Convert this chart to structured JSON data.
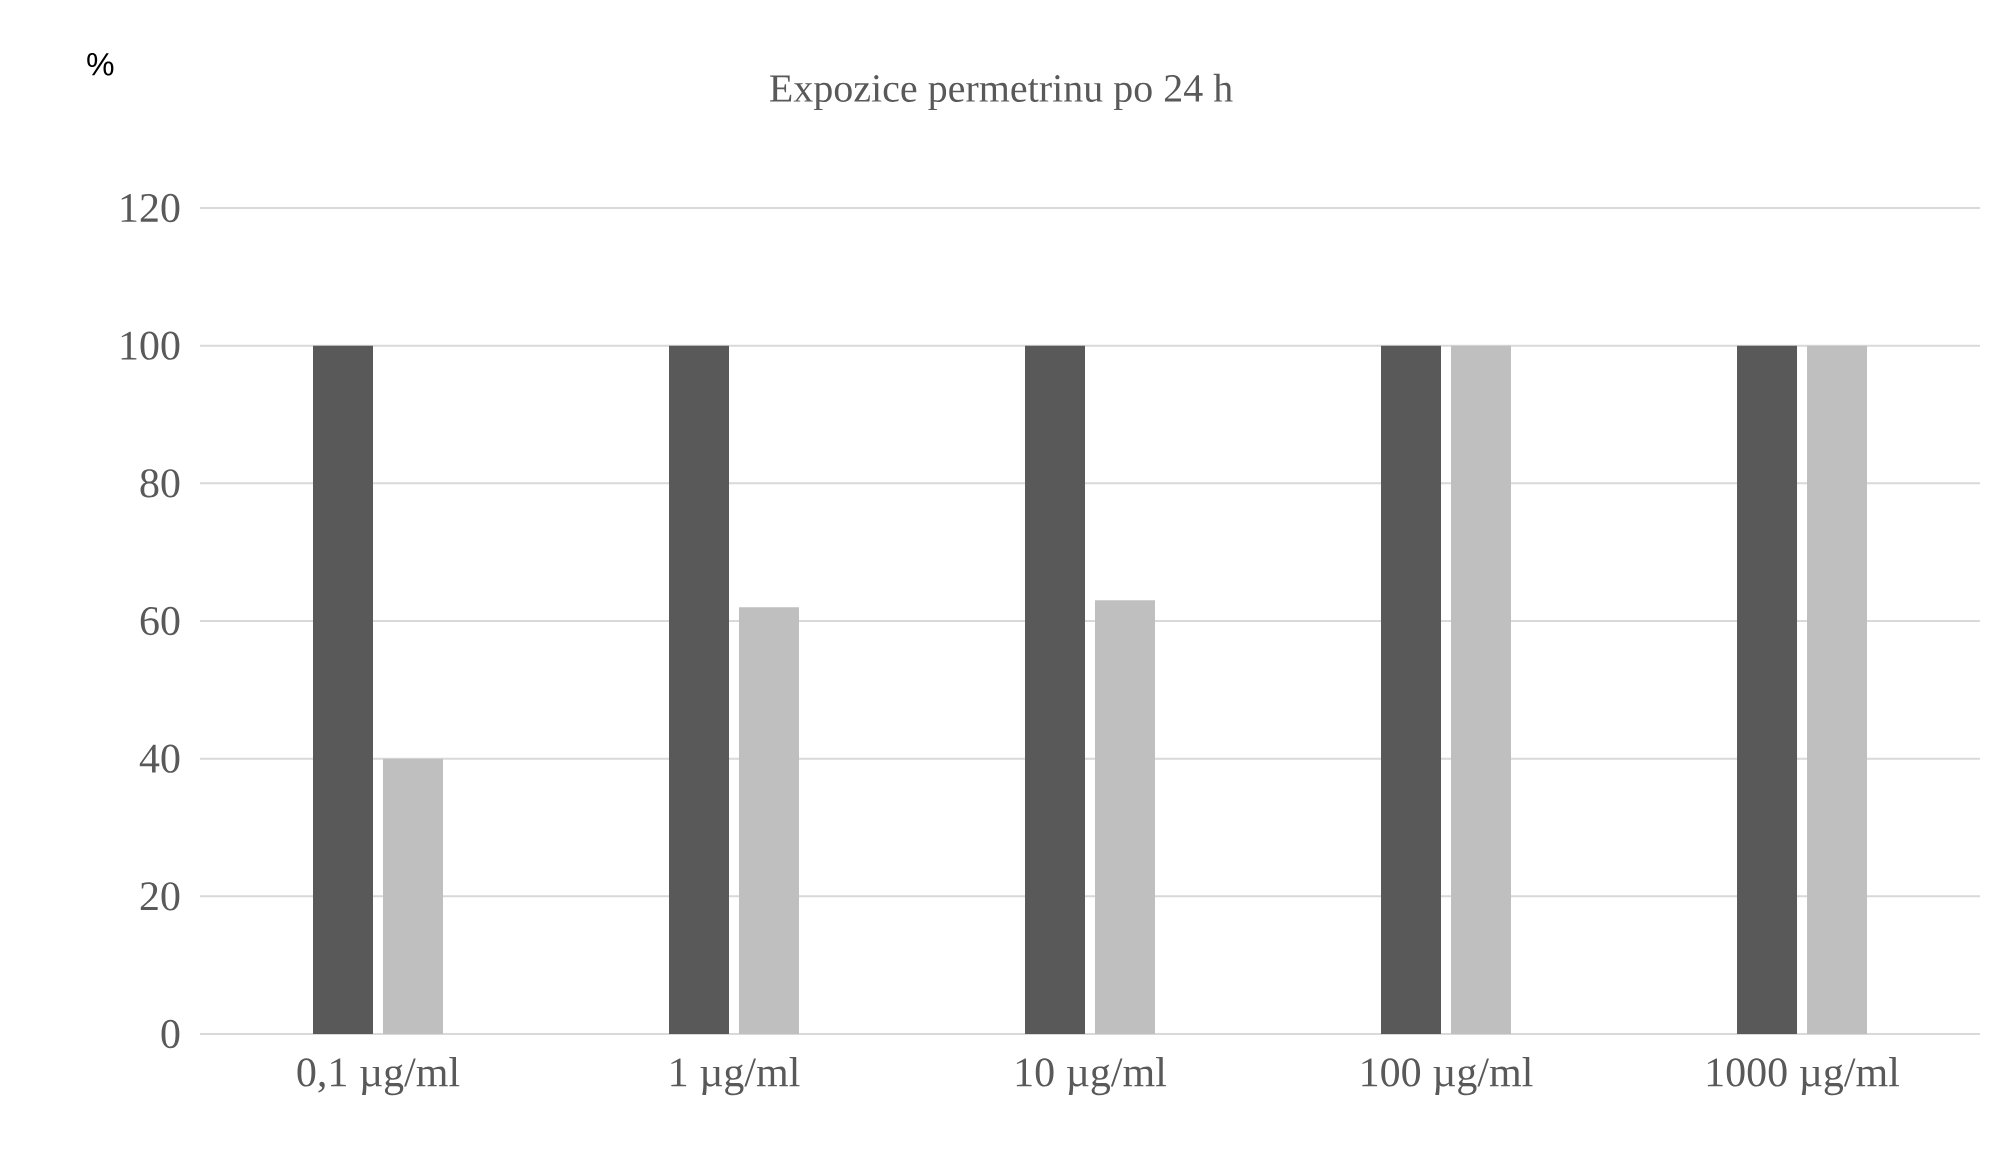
{
  "chart_data": {
    "type": "bar",
    "title": "Expozice permetrinu po 24 h",
    "ylabel": "%",
    "categories": [
      "0,1 µg/ml",
      "1 µg/ml",
      "10 µg/ml",
      "100 µg/ml",
      "1000 µg/ml"
    ],
    "series": [
      {
        "color": "#595959",
        "values": [
          100,
          100,
          100,
          100,
          100
        ]
      },
      {
        "color": "#bfbfbf",
        "values": [
          40,
          62,
          63,
          100,
          100
        ]
      }
    ],
    "ylim": [
      0,
      120
    ],
    "yticks": [
      0,
      20,
      40,
      60,
      80,
      100,
      120
    ],
    "grid": "y"
  }
}
